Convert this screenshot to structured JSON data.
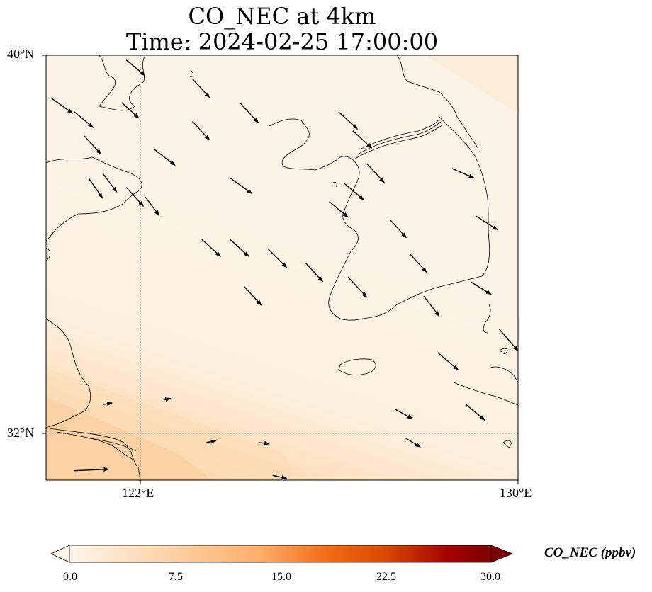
{
  "title": {
    "line1": "CO_NEC at 4km",
    "line2": "Time: 2024-02-25 17:00:00"
  },
  "axes": {
    "lat_labels": [
      "40°N",
      "32°N"
    ],
    "lon_labels": [
      "122°E",
      "130°E"
    ]
  },
  "colorbar": {
    "label": "CO_NEC (ppbv)",
    "ticks": [
      "0.0",
      "7.5",
      "15.0",
      "22.5",
      "30.0"
    ],
    "range": [
      0,
      30
    ],
    "colors": [
      "#fff5eb",
      "#fdd0a2",
      "#fdae6b",
      "#f16913",
      "#d94801",
      "#a50000",
      "#7f0000"
    ]
  },
  "colors": {
    "background_field": "#fdf2e4",
    "elevated_field": "#fbd3a6",
    "coastline": "#000000",
    "gridline": "#8a8a8a"
  },
  "chart_data": {
    "type": "map",
    "variable": "CO_NEC",
    "units": "ppbv",
    "extent": {
      "lon": [
        120,
        130
      ],
      "lat": [
        31,
        40
      ]
    },
    "gridlines": {
      "lon": [
        122
      ],
      "lat": [
        32
      ]
    },
    "concentration_note": "field ~1-2 ppbv over most of domain, rising to ~6-8 ppbv in the southwest corner",
    "wind_vectors": [
      {
        "lon": 120.1,
        "lat": 39.1,
        "u": 1.4,
        "v": -1.0
      },
      {
        "lon": 120.6,
        "lat": 38.8,
        "u": 1.2,
        "v": -1.0
      },
      {
        "lon": 120.8,
        "lat": 38.3,
        "u": 1.1,
        "v": -1.2
      },
      {
        "lon": 120.9,
        "lat": 37.4,
        "u": 0.9,
        "v": -1.3
      },
      {
        "lon": 121.2,
        "lat": 37.5,
        "u": 0.9,
        "v": -1.2
      },
      {
        "lon": 121.7,
        "lat": 39.9,
        "u": 1.2,
        "v": -1.0
      },
      {
        "lon": 121.6,
        "lat": 39.0,
        "u": 1.1,
        "v": -1.0
      },
      {
        "lon": 121.7,
        "lat": 37.2,
        "u": 1.1,
        "v": -1.2
      },
      {
        "lon": 122.3,
        "lat": 38.0,
        "u": 1.3,
        "v": -1.0
      },
      {
        "lon": 122.1,
        "lat": 37.0,
        "u": 0.9,
        "v": -1.2
      },
      {
        "lon": 123.1,
        "lat": 39.5,
        "u": 1.1,
        "v": -1.2
      },
      {
        "lon": 123.1,
        "lat": 38.6,
        "u": 1.1,
        "v": -1.2
      },
      {
        "lon": 124.1,
        "lat": 39.0,
        "u": 1.2,
        "v": -1.3
      },
      {
        "lon": 123.9,
        "lat": 37.4,
        "u": 1.4,
        "v": -1.0
      },
      {
        "lon": 123.3,
        "lat": 36.1,
        "u": 1.2,
        "v": -1.1
      },
      {
        "lon": 123.9,
        "lat": 36.1,
        "u": 1.2,
        "v": -1.1
      },
      {
        "lon": 124.7,
        "lat": 35.9,
        "u": 1.2,
        "v": -1.2
      },
      {
        "lon": 124.2,
        "lat": 35.1,
        "u": 1.1,
        "v": -1.2
      },
      {
        "lon": 125.5,
        "lat": 35.6,
        "u": 1.1,
        "v": -1.2
      },
      {
        "lon": 126.2,
        "lat": 38.8,
        "u": 1.2,
        "v": -1.1
      },
      {
        "lon": 126.5,
        "lat": 38.4,
        "u": 1.2,
        "v": -1.1
      },
      {
        "lon": 126.3,
        "lat": 37.3,
        "u": 1.3,
        "v": -1.1
      },
      {
        "lon": 126.8,
        "lat": 37.7,
        "u": 1.1,
        "v": -1.2
      },
      {
        "lon": 126.0,
        "lat": 36.9,
        "u": 1.2,
        "v": -1.0
      },
      {
        "lon": 127.3,
        "lat": 36.5,
        "u": 1.0,
        "v": -1.1
      },
      {
        "lon": 126.4,
        "lat": 35.3,
        "u": 1.2,
        "v": -1.3
      },
      {
        "lon": 127.7,
        "lat": 35.8,
        "u": 1.1,
        "v": -1.2
      },
      {
        "lon": 128.0,
        "lat": 34.9,
        "u": 1.0,
        "v": -1.3
      },
      {
        "lon": 128.3,
        "lat": 33.7,
        "u": 1.3,
        "v": -1.1
      },
      {
        "lon": 129.6,
        "lat": 34.2,
        "u": 1.2,
        "v": -1.4
      },
      {
        "lon": 128.6,
        "lat": 37.6,
        "u": 1.4,
        "v": -0.6
      },
      {
        "lon": 129.1,
        "lat": 36.6,
        "u": 1.4,
        "v": -0.9
      },
      {
        "lon": 129.0,
        "lat": 35.2,
        "u": 1.3,
        "v": -0.8
      },
      {
        "lon": 128.9,
        "lat": 32.6,
        "u": 1.2,
        "v": -1.0
      },
      {
        "lon": 127.4,
        "lat": 32.5,
        "u": 1.1,
        "v": -0.6
      },
      {
        "lon": 127.6,
        "lat": 31.9,
        "u": 1.0,
        "v": -0.6
      },
      {
        "lon": 121.2,
        "lat": 32.6,
        "u": 0.6,
        "v": 0.1
      },
      {
        "lon": 120.6,
        "lat": 31.2,
        "u": 2.2,
        "v": 0.1
      },
      {
        "lon": 122.5,
        "lat": 32.7,
        "u": 0.4,
        "v": 0.1
      },
      {
        "lon": 123.4,
        "lat": 31.8,
        "u": 0.6,
        "v": 0.1
      },
      {
        "lon": 124.5,
        "lat": 31.8,
        "u": 0.7,
        "v": -0.1
      },
      {
        "lon": 124.8,
        "lat": 31.1,
        "u": 0.9,
        "v": -0.2
      }
    ]
  }
}
